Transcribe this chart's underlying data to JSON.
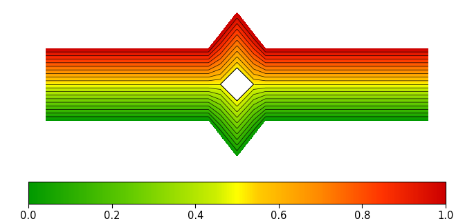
{
  "colorbar_ticks": [
    0,
    0.2,
    0.4,
    0.6,
    0.8,
    1.0
  ],
  "cmap_colors": [
    [
      0.0,
      "#009900"
    ],
    [
      0.25,
      "#66cc00"
    ],
    [
      0.45,
      "#ccee00"
    ],
    [
      0.5,
      "#ffff00"
    ],
    [
      0.55,
      "#ffcc00"
    ],
    [
      0.7,
      "#ff8800"
    ],
    [
      0.85,
      "#ff3300"
    ],
    [
      1.0,
      "#cc0000"
    ]
  ],
  "CW": 0.38,
  "CL": 2.0,
  "LOBEv": 0.38,
  "LOBEh": 0.3,
  "RHv": 0.175,
  "RHh": 0.175,
  "n_fill": 300,
  "n_lines": 21,
  "fig_width": 6.85,
  "fig_height": 3.17,
  "dpi": 100
}
